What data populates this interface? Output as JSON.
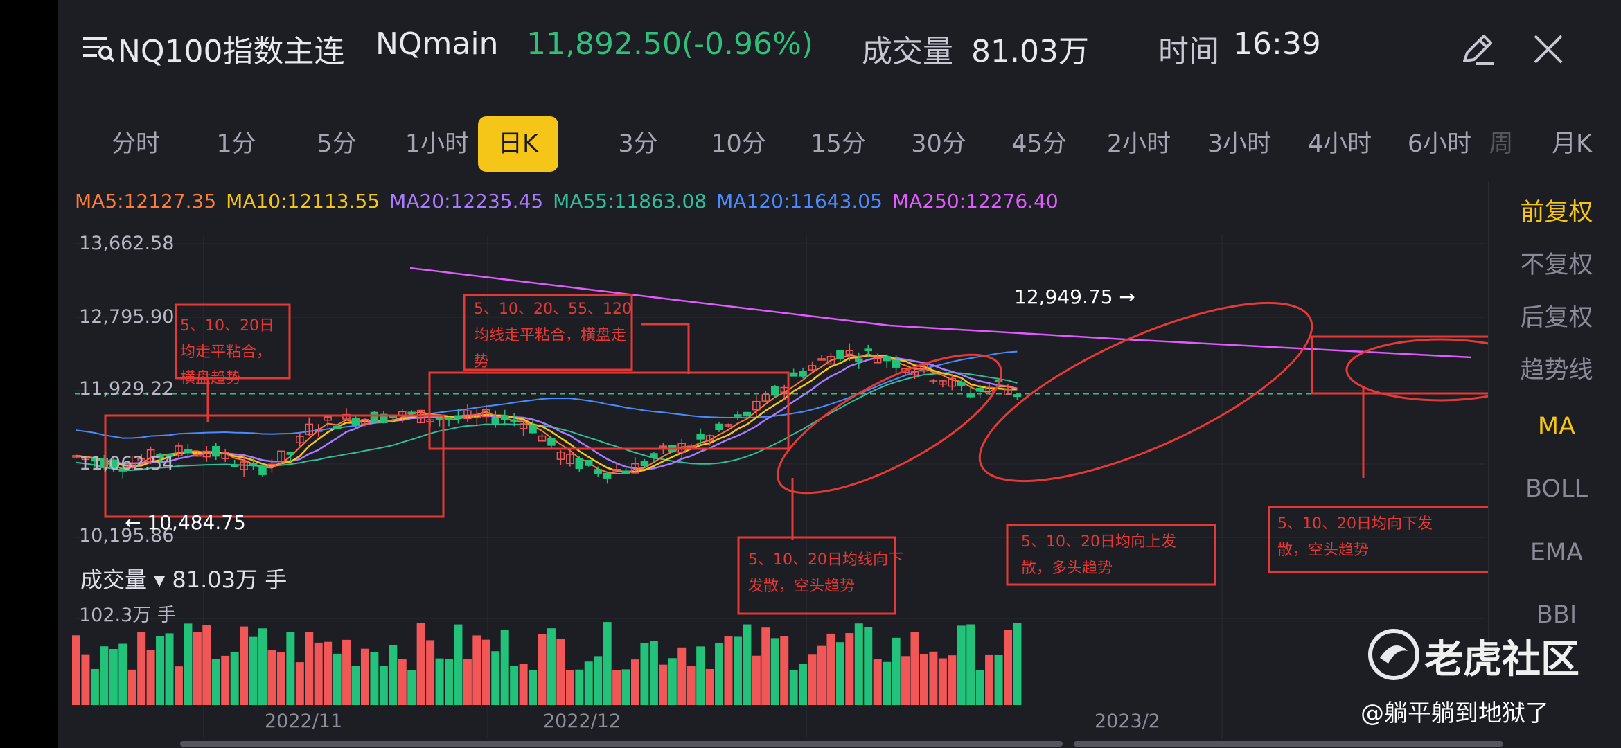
{
  "header": {
    "name": "NQ100指数主连",
    "code": "NQmain",
    "price": "11,892.50(-0.96%)",
    "volume_label": "成交量",
    "volume_value": "81.03万",
    "time_label": "时间",
    "time_value": "16:39",
    "icons": [
      "search-list-icon",
      "edit-icon",
      "close-icon"
    ]
  },
  "tabs": [
    "分时",
    "1分",
    "5分",
    "1小时",
    "日K",
    "3分",
    "10分",
    "15分",
    "30分",
    "45分",
    "2小时",
    "3小时",
    "4小时",
    "6小时",
    "周",
    "月K"
  ],
  "active_tab": "日K",
  "right_panel": {
    "items": [
      "前复权",
      "不复权",
      "后复权",
      "趋势线",
      "MA",
      "BOLL",
      "EMA",
      "BBI"
    ],
    "active": [
      "前复权",
      "MA"
    ]
  },
  "ma": [
    {
      "label": "MA5:12127.35",
      "color": "#ff7b3a"
    },
    {
      "label": "MA10:12113.55",
      "color": "#f5c518"
    },
    {
      "label": "MA20:12235.45",
      "color": "#a97bff"
    },
    {
      "label": "MA55:11863.08",
      "color": "#2fbf9a"
    },
    {
      "label": "MA120:11643.05",
      "color": "#4a8cff"
    },
    {
      "label": "MA250:12276.40",
      "color": "#e05cff"
    }
  ],
  "y_axis": [
    "13,662.58",
    "12,795.90",
    "11,929.22",
    "11,062.54",
    "10,195.86"
  ],
  "annotations": {
    "high": "12,949.75 →",
    "low": "← 10,484.75"
  },
  "notes": [
    "5、10、20日均走平粘合，横盘趋势",
    "5、10、20、55、120均线走平粘合，横盘走势",
    "5、10、20日均线向下发散，空头趋势",
    "5、10、20日均向上发散，多头趋势",
    "5、10、20日均向下发散，空头趋势"
  ],
  "volume": {
    "label": "成交量 ▾ 81.03万 手",
    "max": "102.3万 手"
  },
  "x_axis": [
    "2022/11",
    "2022/12",
    "2023/2"
  ],
  "watermark": {
    "brand": "老虎社区",
    "user": "@躺平躺到地狱了"
  },
  "chart_data": {
    "type": "candlestick",
    "y_ticks": [
      13662.58,
      12795.9,
      11929.22,
      11062.54,
      10195.86
    ],
    "last_close": 11892.5,
    "high": 12949.75,
    "low": 10484.75,
    "x_ticks": [
      "2022/11",
      "2022/12",
      "2023/2"
    ],
    "colors": {
      "up": "#f25757",
      "down": "#22c27a"
    }
  }
}
